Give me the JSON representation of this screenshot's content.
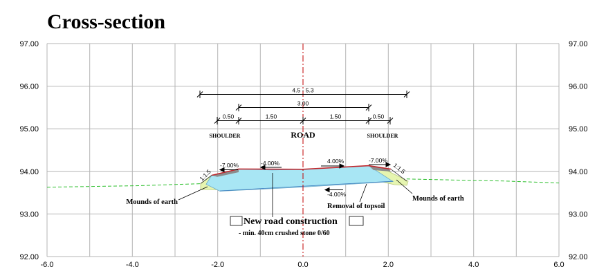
{
  "title": "Cross-section",
  "y_ticks": [
    "97.00",
    "96.00",
    "95.00",
    "94.00",
    "93.00",
    "92.00"
  ],
  "x_ticks": [
    "-6.0",
    "-4.0",
    "-2.0",
    "0.0",
    "2.0",
    "4.0",
    "6.0"
  ],
  "dimensions": {
    "total": "4.5 - 5.3",
    "carriageway": "3.00",
    "shoulder_left": "0.50",
    "lane_left": "1.50",
    "lane_right": "1.50",
    "shoulder_right": "0.50"
  },
  "labels": {
    "shoulder_left": "SHOULDER",
    "road": "ROAD",
    "shoulder_right": "SHOULDER",
    "mounds_left": "Mounds of earth",
    "mounds_right": "Mounds of earth",
    "removal_topsoil": "Removal of topsoil",
    "new_road": "New road construction",
    "new_road_sub": "- min. 40cm crushed stone 0/60"
  },
  "slopes": {
    "left_shoulder": "-7.00%",
    "left_lane": "-4.00%",
    "right_lane": "4.00%",
    "right_shoulder": "-7.00%",
    "bottom": "-4.00%",
    "embankment_left": "1:1.5",
    "embankment_right": "1:1.5"
  },
  "colors": {
    "grid": "#b4b4b4",
    "axis": "#c00000",
    "ground": "#2bbf2b",
    "road_body": "#a8e6f4",
    "mound": "#e6f5b0",
    "shoulder": "#8c8c8c",
    "surface": "#c0262c"
  }
}
